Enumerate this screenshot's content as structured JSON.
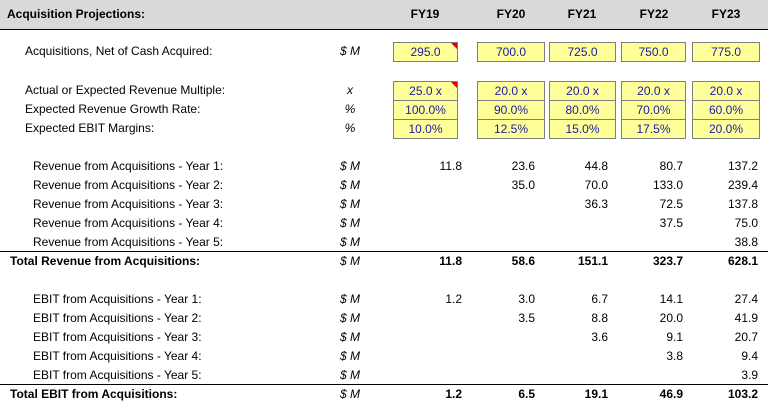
{
  "header": {
    "title": "Acquisition Projections:",
    "columns": [
      "FY19",
      "FY20",
      "FY21",
      "FY22",
      "FY23"
    ]
  },
  "rows": [
    {
      "label": "Acquisitions, Net of Cash Acquired:",
      "unit": "$ M",
      "values": [
        "295.0",
        "700.0",
        "725.0",
        "750.0",
        "775.0"
      ]
    },
    {
      "label": "Actual or Expected Revenue Multiple:",
      "unit": "x",
      "values": [
        "25.0 x",
        "20.0 x",
        "20.0 x",
        "20.0 x",
        "20.0 x"
      ]
    },
    {
      "label": "Expected Revenue Growth Rate:",
      "unit": "%",
      "values": [
        "100.0%",
        "90.0%",
        "80.0%",
        "70.0%",
        "60.0%"
      ]
    },
    {
      "label": "Expected EBIT Margins:",
      "unit": "%",
      "values": [
        "10.0%",
        "12.5%",
        "15.0%",
        "17.5%",
        "20.0%"
      ]
    },
    {
      "label": "Revenue from Acquisitions - Year 1:",
      "unit": "$ M",
      "values": [
        "11.8",
        "23.6",
        "44.8",
        "80.7",
        "137.2"
      ]
    },
    {
      "label": "Revenue from Acquisitions - Year 2:",
      "unit": "$ M",
      "values": [
        null,
        "35.0",
        "70.0",
        "133.0",
        "239.4"
      ]
    },
    {
      "label": "Revenue from Acquisitions - Year 3:",
      "unit": "$ M",
      "values": [
        null,
        null,
        "36.3",
        "72.5",
        "137.8"
      ]
    },
    {
      "label": "Revenue from Acquisitions - Year 4:",
      "unit": "$ M",
      "values": [
        null,
        null,
        null,
        "37.5",
        "75.0"
      ]
    },
    {
      "label": "Revenue from Acquisitions - Year 5:",
      "unit": "$ M",
      "values": [
        null,
        null,
        null,
        null,
        "38.8"
      ]
    },
    {
      "label": "Total Revenue from Acquisitions:",
      "unit": "$ M",
      "values": [
        "11.8",
        "58.6",
        "151.1",
        "323.7",
        "628.1"
      ]
    },
    {
      "label": "EBIT from Acquisitions - Year 1:",
      "unit": "$ M",
      "values": [
        "1.2",
        "3.0",
        "6.7",
        "14.1",
        "27.4"
      ]
    },
    {
      "label": "EBIT from Acquisitions - Year 2:",
      "unit": "$ M",
      "values": [
        null,
        "3.5",
        "8.8",
        "20.0",
        "41.9"
      ]
    },
    {
      "label": "EBIT from Acquisitions - Year 3:",
      "unit": "$ M",
      "values": [
        null,
        null,
        "3.6",
        "9.1",
        "20.7"
      ]
    },
    {
      "label": "EBIT from Acquisitions - Year 4:",
      "unit": "$ M",
      "values": [
        null,
        null,
        null,
        "3.8",
        "9.4"
      ]
    },
    {
      "label": "EBIT from Acquisitions - Year 5:",
      "unit": "$ M",
      "values": [
        null,
        null,
        null,
        null,
        "3.9"
      ]
    },
    {
      "label": "Total EBIT from Acquisitions:",
      "unit": "$ M",
      "values": [
        "1.2",
        "6.5",
        "19.1",
        "46.9",
        "103.2"
      ]
    }
  ]
}
